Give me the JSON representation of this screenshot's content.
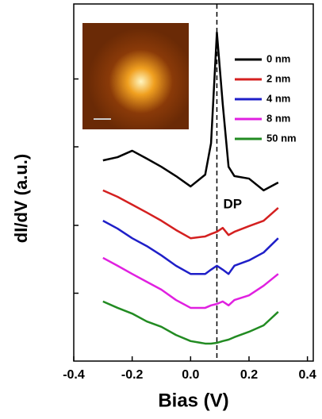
{
  "chart_data": {
    "type": "line",
    "xlabel": "Bias (V)",
    "ylabel": "dI/dV (a.u.)",
    "x": [
      -0.3,
      -0.25,
      -0.2,
      -0.15,
      -0.1,
      -0.05,
      0,
      0.05,
      0.07,
      0.09,
      0.11,
      0.13,
      0.15,
      0.2,
      0.25,
      0.3
    ],
    "series": [
      {
        "name": "0 nm",
        "color": "#000000",
        "values": [
          5.62,
          5.71,
          5.89,
          5.67,
          5.44,
          5.18,
          4.89,
          5.22,
          6.1,
          9.2,
          7.2,
          5.44,
          5.18,
          5.11,
          4.78,
          5.0
        ]
      },
      {
        "name": "2 nm",
        "color": "#d42020",
        "values": [
          4.78,
          4.6,
          4.38,
          4.16,
          3.93,
          3.67,
          3.44,
          3.49,
          3.56,
          3.62,
          3.73,
          3.53,
          3.62,
          3.78,
          3.93,
          4.29
        ]
      },
      {
        "name": "4 nm",
        "color": "#1f1fc8",
        "values": [
          3.93,
          3.71,
          3.44,
          3.22,
          2.96,
          2.67,
          2.44,
          2.44,
          2.56,
          2.67,
          2.56,
          2.44,
          2.67,
          2.82,
          3.04,
          3.44
        ]
      },
      {
        "name": "8 nm",
        "color": "#e020e0",
        "values": [
          2.89,
          2.67,
          2.44,
          2.22,
          2.0,
          1.71,
          1.49,
          1.49,
          1.56,
          1.6,
          1.67,
          1.56,
          1.71,
          1.84,
          2.11,
          2.44
        ]
      },
      {
        "name": "50 nm",
        "color": "#228b22",
        "values": [
          1.67,
          1.49,
          1.33,
          1.11,
          0.96,
          0.73,
          0.56,
          0.49,
          0.49,
          0.51,
          0.56,
          0.6,
          0.67,
          0.82,
          1.0,
          1.38
        ]
      }
    ],
    "xlim": [
      -0.4,
      0.42
    ],
    "xticks": [
      {
        "value": -0.4,
        "label": "-0.4"
      },
      {
        "value": -0.2,
        "label": "-0.2"
      },
      {
        "value": 0,
        "label": "0.0"
      },
      {
        "value": 0.2,
        "label": "0.2"
      },
      {
        "value": 0.4,
        "label": "0.4"
      }
    ],
    "ylim": [
      0,
      10
    ],
    "yticks": [
      1.9,
      3.8,
      6,
      7.9
    ],
    "annotations": [
      {
        "text": "DP",
        "x": 0.09
      }
    ],
    "legend": "upper right"
  }
}
